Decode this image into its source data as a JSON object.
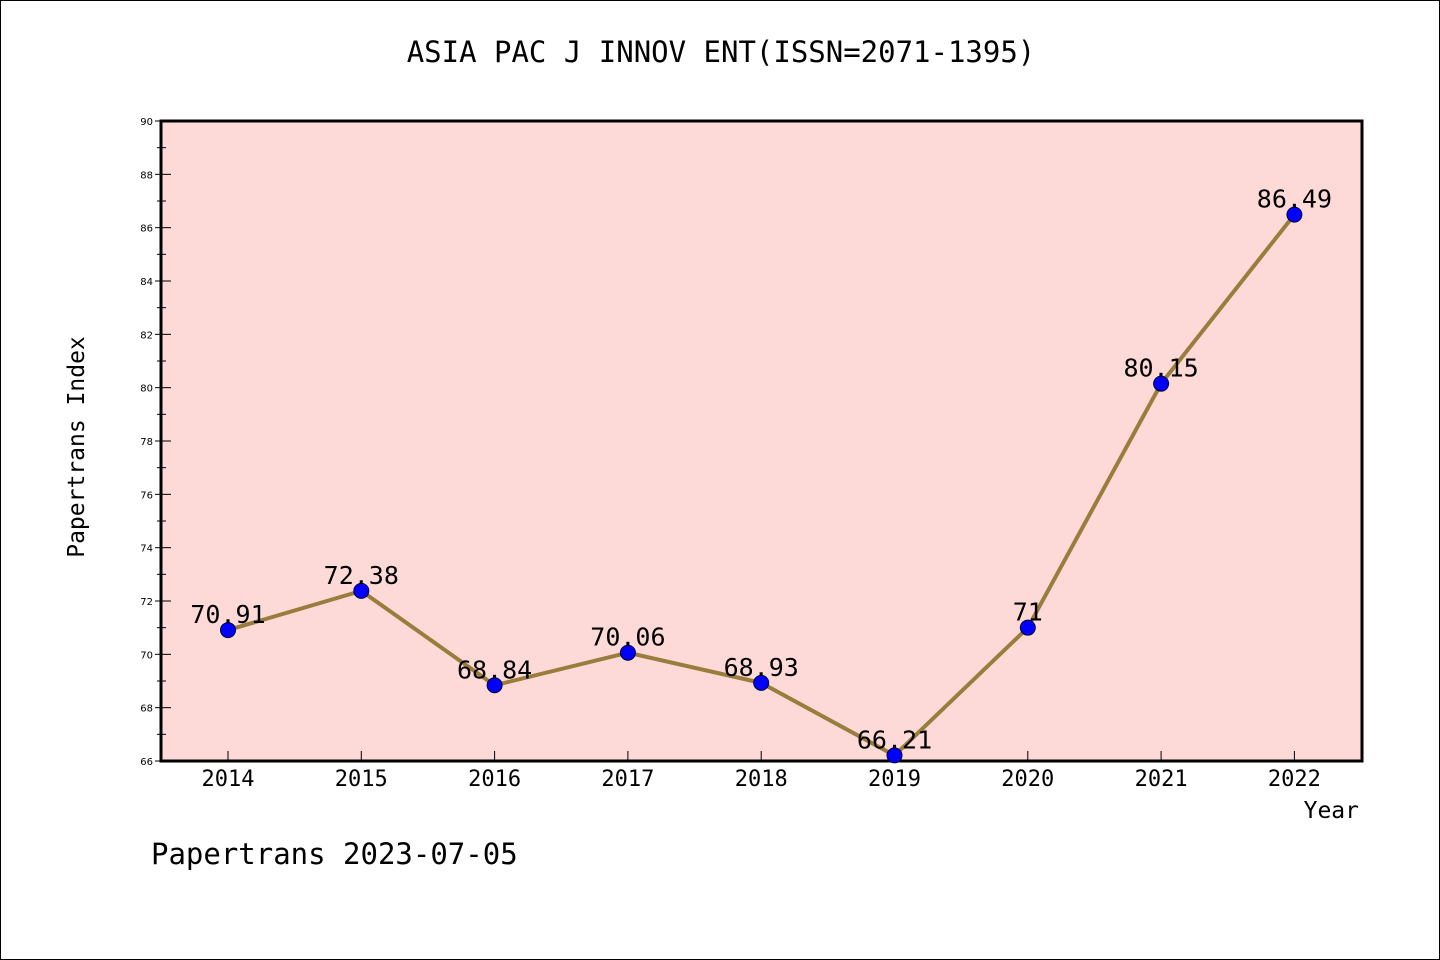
{
  "chart_data": {
    "type": "line",
    "title": "ASIA PAC J INNOV ENT(ISSN=2071-1395)",
    "xlabel": "Year",
    "ylabel": "Papertrans Index",
    "categories": [
      "2014",
      "2015",
      "2016",
      "2017",
      "2018",
      "2019",
      "2020",
      "2021",
      "2022"
    ],
    "values": [
      70.91,
      72.38,
      68.84,
      70.06,
      68.93,
      66.21,
      71,
      80.15,
      86.49
    ],
    "data_labels": [
      "70.91",
      "72.38",
      "68.84",
      "70.06",
      "68.93",
      "66.21",
      "71",
      "80.15",
      "86.49"
    ],
    "ylim": [
      66,
      90
    ],
    "yticks": [
      66,
      68,
      70,
      72,
      74,
      76,
      78,
      80,
      82,
      84,
      86,
      88,
      90
    ],
    "grid": false,
    "legend": "none",
    "colors": {
      "plot_background": "#fddad8",
      "line": "#9a7d3c",
      "marker": "#0000ff"
    }
  },
  "footer": "Papertrans 2023-07-05"
}
